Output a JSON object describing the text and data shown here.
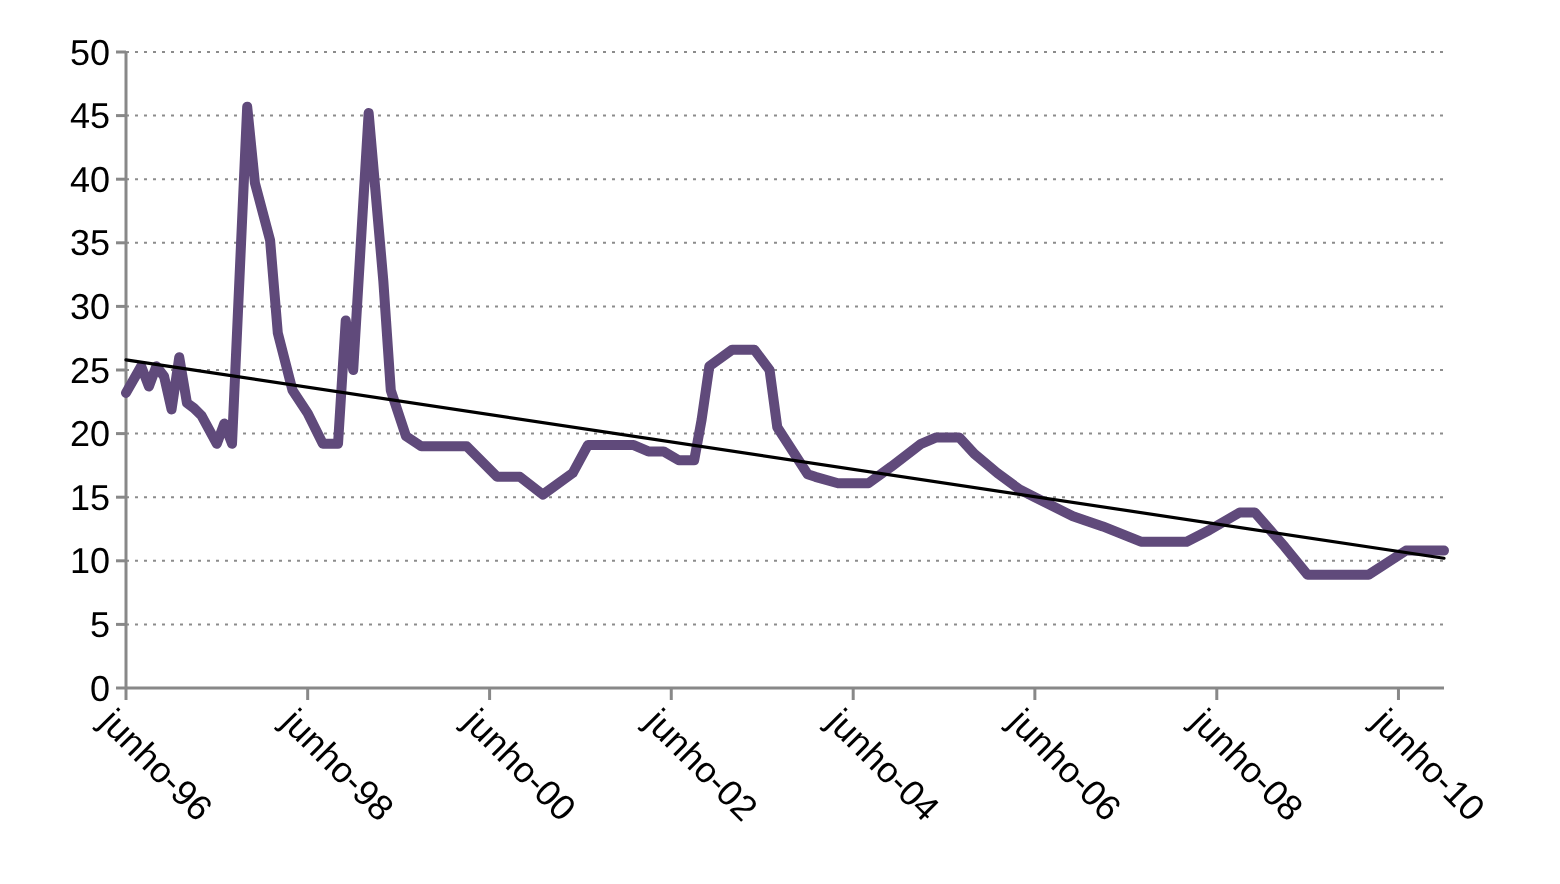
{
  "chart_data": {
    "type": "line",
    "x": [
      "1996-06",
      "1996-08",
      "1996-09",
      "1996-10",
      "1996-11",
      "1996-12",
      "1997-01",
      "1997-02",
      "1997-03",
      "1997-04",
      "1997-06",
      "1997-07",
      "1997-08",
      "1997-10",
      "1997-11",
      "1998-01",
      "1998-02",
      "1998-04",
      "1998-06",
      "1998-08",
      "1998-10",
      "1998-11",
      "1998-12",
      "1999-02",
      "1999-04",
      "1999-05",
      "1999-07",
      "1999-09",
      "2000-03",
      "2000-04",
      "2000-07",
      "2000-10",
      "2001-01",
      "2001-05",
      "2001-07",
      "2002-01",
      "2002-03",
      "2002-05",
      "2002-07",
      "2002-09",
      "2002-10",
      "2002-11",
      "2003-02",
      "2003-05",
      "2003-07",
      "2003-08",
      "2003-12",
      "2004-01",
      "2004-04",
      "2004-08",
      "2004-11",
      "2005-03",
      "2005-05",
      "2005-08",
      "2005-10",
      "2006-01",
      "2006-04",
      "2006-06",
      "2006-11",
      "2007-03",
      "2007-08",
      "2008-02",
      "2008-05",
      "2008-09",
      "2008-11",
      "2009-03",
      "2009-06",
      "2010-02",
      "2010-07",
      "2010-12"
    ],
    "series": [
      {
        "color": "#604a7b",
        "values": [
          23.2,
          25.3,
          23.7,
          25.3,
          24.5,
          21.9,
          26,
          22.4,
          22,
          21.4,
          19.2,
          20.8,
          19.2,
          45.7,
          39.7,
          35.2,
          27.9,
          23.4,
          21.6,
          19.2,
          19.2,
          28.9,
          25,
          45.2,
          32,
          23.4,
          19.8,
          19,
          19,
          18.4,
          16.6,
          16.6,
          15.2,
          16.9,
          19.1,
          19.1,
          18.6,
          18.6,
          17.9,
          17.9,
          21.1,
          25.3,
          26.6,
          26.6,
          25,
          20.5,
          16.8,
          16.6,
          16.1,
          16.1,
          17.4,
          19.2,
          19.7,
          19.7,
          18.4,
          16.9,
          15.6,
          15,
          13.5,
          12.7,
          11.5,
          11.5,
          12.4,
          13.8,
          13.8,
          11.1,
          8.9,
          8.9,
          10.8,
          10.8
        ]
      },
      {
        "type": "line",
        "color": "#000000",
        "x": [
          "1996-06",
          "2010-12"
        ],
        "values": [
          25.8,
          10.2
        ]
      }
    ],
    "xlim": [
      "1996-06",
      "2010-12"
    ],
    "xticks": [
      {
        "value": "1996-06",
        "label": "junho-96"
      },
      {
        "value": "1998-06",
        "label": "junho-98"
      },
      {
        "value": "2000-06",
        "label": "junho-00"
      },
      {
        "value": "2002-06",
        "label": "junho-02"
      },
      {
        "value": "2004-06",
        "label": "junho-04"
      },
      {
        "value": "2006-06",
        "label": "junho-06"
      },
      {
        "value": "2008-06",
        "label": "junho-08"
      },
      {
        "value": "2010-06",
        "label": "junho-10"
      }
    ],
    "ylim": [
      0,
      50
    ],
    "yticks": [
      0,
      5,
      10,
      15,
      20,
      25,
      30,
      35,
      40,
      45,
      50
    ],
    "grid": "y",
    "marker": "none",
    "line_style": "solid"
  }
}
